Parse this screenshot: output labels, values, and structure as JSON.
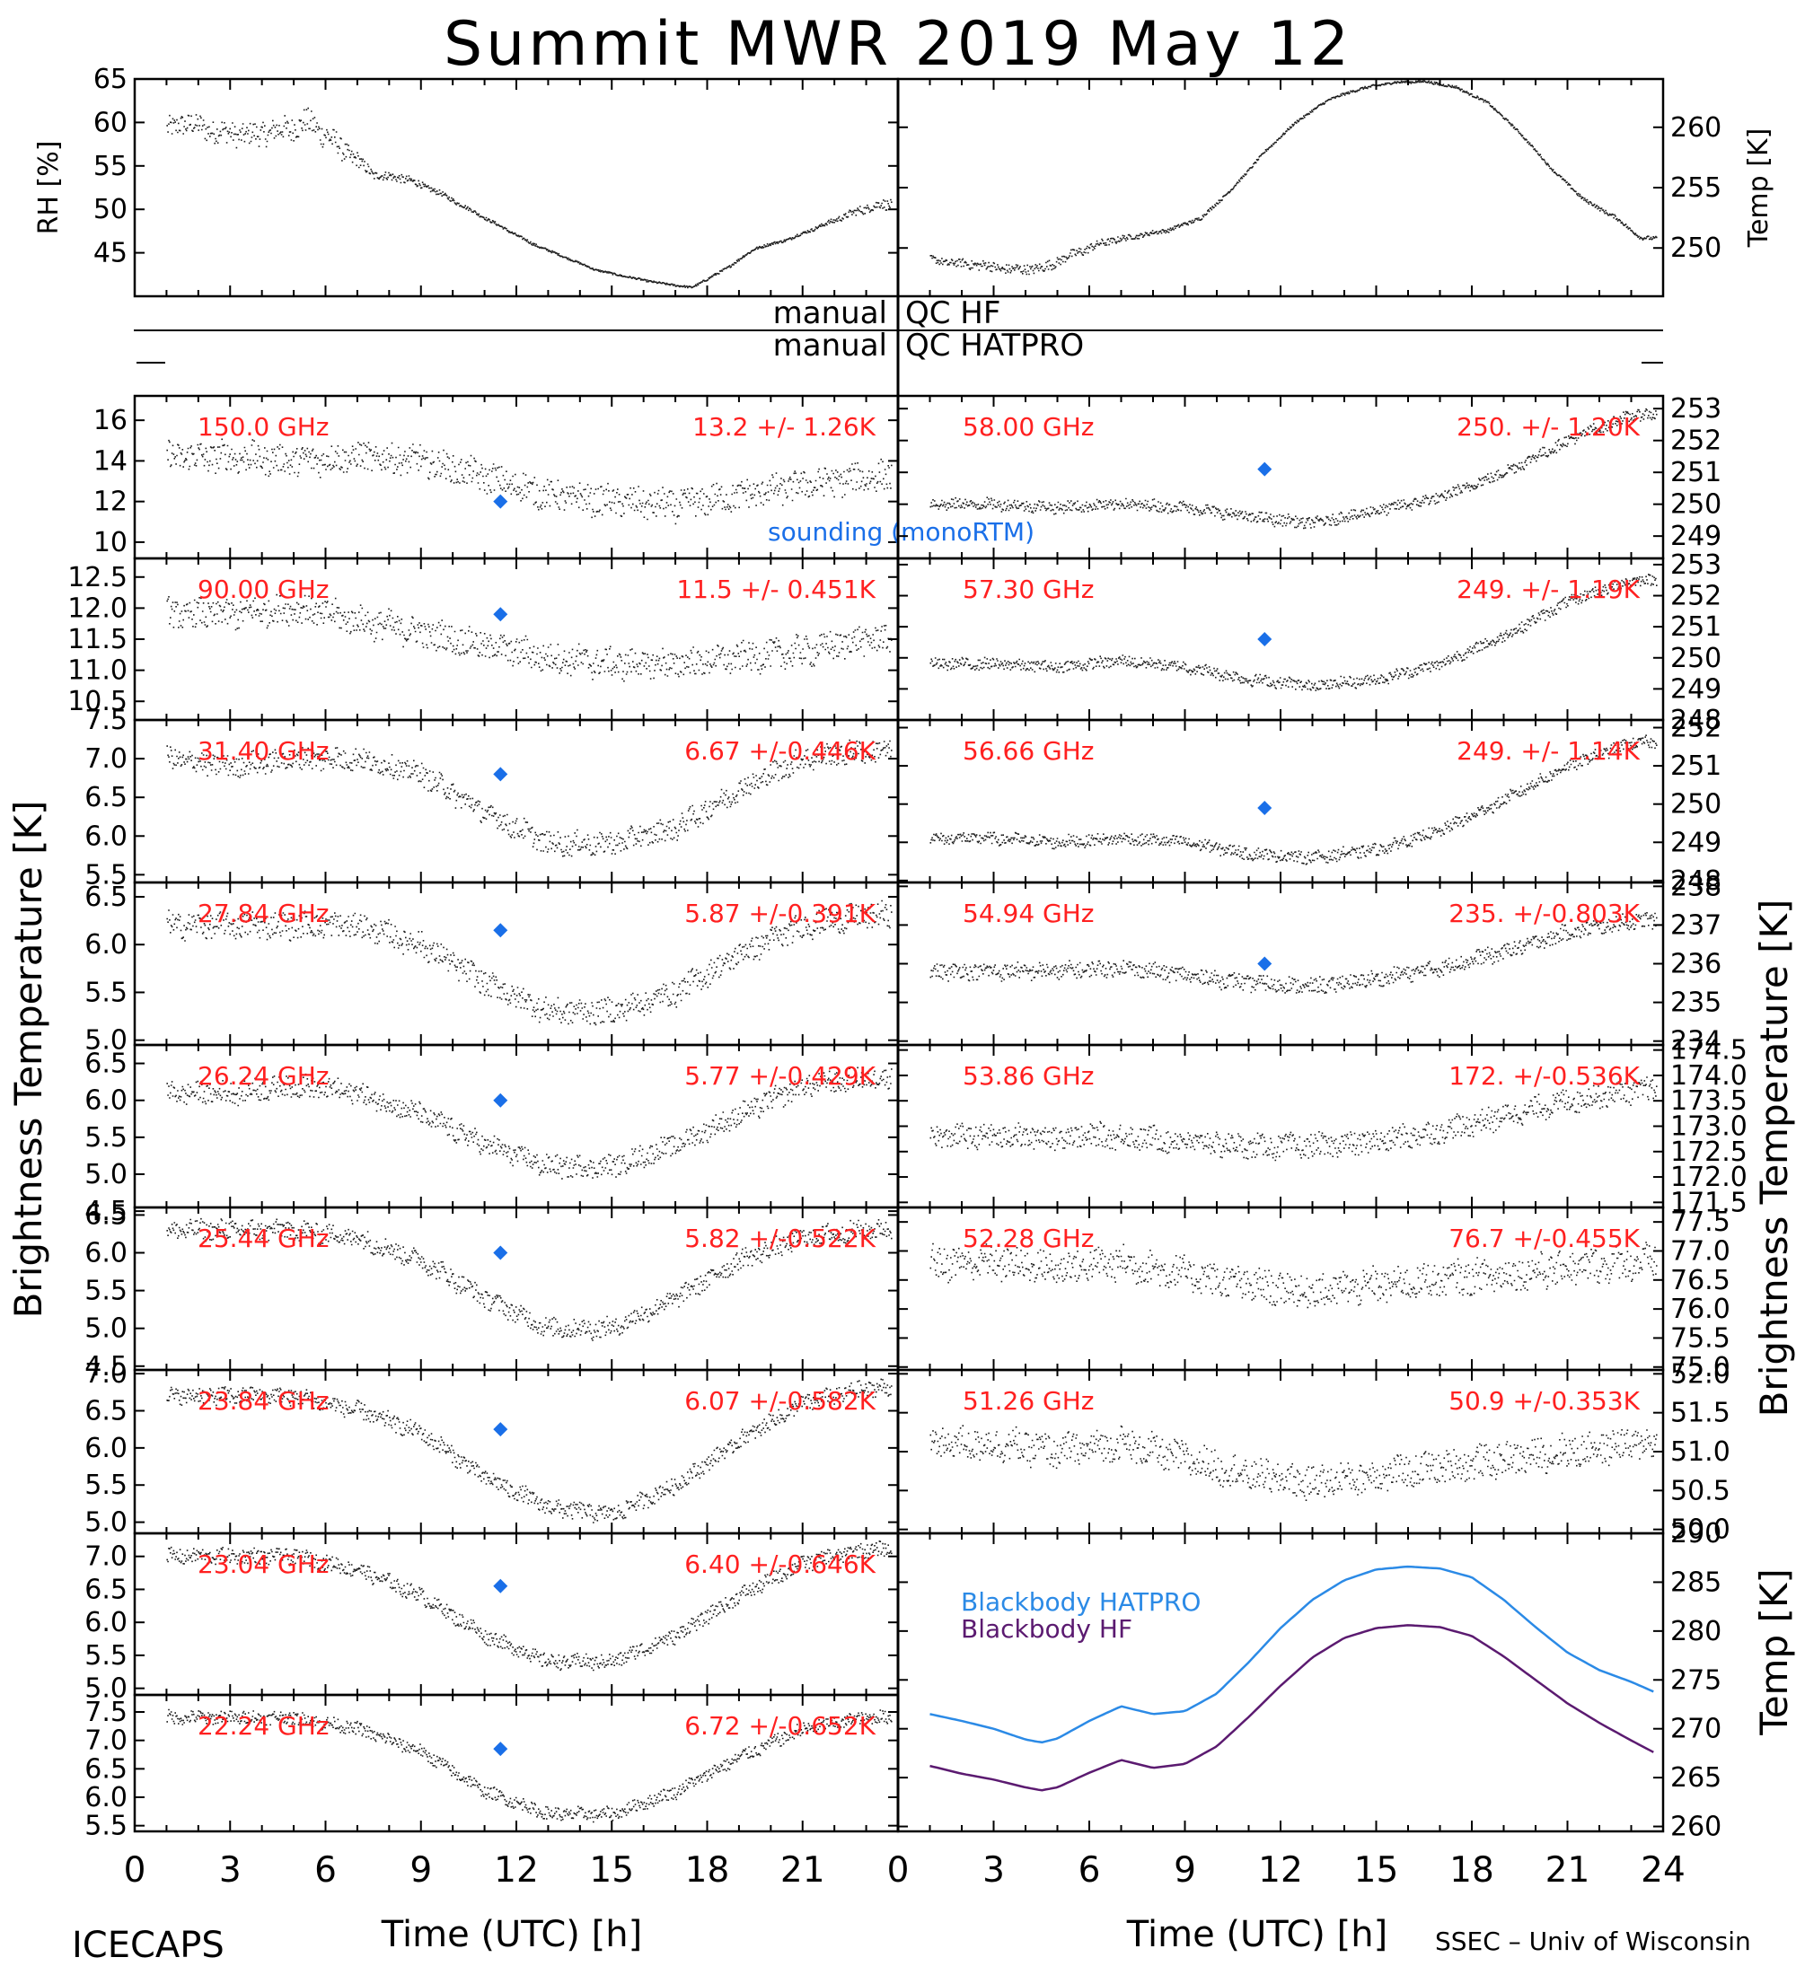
{
  "title": "Summit MWR 2019 May 12",
  "footer_left": "ICECAPS",
  "footer_right": "SSEC – Univ of Wisconsin",
  "colors": {
    "text": "#000000",
    "label_red": "#ff2020",
    "sounding": "#1a6fe8",
    "hatpro": "#2b8ae6",
    "hf": "#5b1a70"
  },
  "left_ylabel": "Brightness Temperature [K]",
  "right_ylabel": "Brightness Temperature [K]",
  "bb_ylabel": "Temp [K]",
  "qc": {
    "hf_left": "manual",
    "hf_right": "QC HF",
    "hatpro_left": "manual",
    "hatpro_right": "QC HATPRO"
  },
  "chart_data": [
    {
      "type": "scatter",
      "id": "rh",
      "ylabel": "RH [%]",
      "xlim": [
        0,
        24
      ],
      "ylim": [
        40,
        65
      ],
      "yticks": [
        "45",
        "50",
        "55",
        "60",
        "65"
      ],
      "x": [
        0.5,
        1.5,
        2.5,
        3.5,
        4.5,
        5.5,
        6.5,
        7.5,
        8.5,
        9.5,
        10.5,
        11.5,
        12.5,
        13.5,
        14.5,
        15.5,
        16.5,
        17.5,
        18.5,
        19.5,
        20.5,
        21.5,
        22.5,
        23.3
      ],
      "values": [
        58,
        60,
        59,
        58.5,
        59,
        60,
        57,
        54,
        53.5,
        52,
        50,
        48,
        46,
        44.5,
        43,
        42.2,
        41.5,
        41,
        43,
        45.5,
        46.5,
        48,
        49.5,
        50.5
      ],
      "noise": [
        2.5,
        2.5,
        2.5,
        2.5,
        2.8,
        3.0,
        2.5,
        1.0,
        1.0,
        0.6,
        0.4,
        0.3,
        0.3,
        0.2,
        0.2,
        0.2,
        0.2,
        0.2,
        0.3,
        0.3,
        0.3,
        0.4,
        0.8,
        1.2
      ]
    },
    {
      "type": "scatter",
      "id": "temp",
      "ylabel": "Temp [K]",
      "xlim": [
        0,
        24
      ],
      "ylim": [
        246,
        264
      ],
      "yticks": [
        "250",
        "255",
        "260"
      ],
      "x": [
        0.5,
        1.5,
        2.5,
        3.5,
        4.5,
        5.5,
        6.5,
        7.5,
        8.5,
        9.5,
        10.5,
        11.5,
        12.5,
        13.5,
        14.5,
        15.5,
        16.5,
        17.5,
        18.5,
        19.5,
        20.5,
        21.5,
        22.5,
        23.3
      ],
      "values": [
        249.3,
        248.8,
        248.6,
        248.2,
        248.3,
        249.5,
        250.5,
        251,
        251.5,
        252.5,
        255,
        258,
        260.5,
        262.3,
        263.2,
        263.7,
        263.8,
        263.3,
        262,
        259.5,
        256.5,
        254,
        252.5,
        250.8
      ],
      "noise": [
        0.5,
        0.6,
        0.8,
        0.8,
        0.8,
        0.8,
        0.6,
        0.4,
        0.3,
        0.3,
        0.2,
        0.2,
        0.2,
        0.2,
        0.2,
        0.2,
        0.2,
        0.2,
        0.2,
        0.2,
        0.2,
        0.3,
        0.3,
        0.3
      ]
    },
    {
      "type": "scatter",
      "channel": "150.0 GHz",
      "stat": "13.2 +/-  1.26K",
      "ylim": [
        9.2,
        17.2
      ],
      "yticks": [
        "10",
        "12",
        "14",
        "16"
      ],
      "x": [
        1,
        3,
        5,
        7,
        9,
        11,
        13,
        15,
        17,
        19,
        21,
        23
      ],
      "values": [
        14.2,
        14.2,
        14.0,
        14.2,
        14.0,
        13.2,
        12.3,
        12.0,
        11.8,
        12.3,
        12.8,
        13.2
      ],
      "noise": 1.4,
      "sounding": {
        "x": 11.5,
        "y": 12.0,
        "label": "sounding (monoRTM)"
      }
    },
    {
      "type": "scatter",
      "channel": "90.00 GHz",
      "stat": "11.5 +/- 0.451K",
      "ylim": [
        10.2,
        12.8
      ],
      "yticks": [
        "10.5",
        "11.0",
        "11.5",
        "12.0",
        "12.5"
      ],
      "x": [
        1,
        3,
        5,
        7,
        9,
        11,
        13,
        15,
        17,
        19,
        21,
        23
      ],
      "values": [
        11.9,
        11.9,
        12.0,
        11.8,
        11.6,
        11.4,
        11.2,
        11.1,
        11.1,
        11.2,
        11.3,
        11.5
      ],
      "noise": 0.45,
      "sounding": {
        "x": 11.5,
        "y": 11.9
      }
    },
    {
      "type": "scatter",
      "channel": "31.40 GHz",
      "stat": "6.67 +/-0.446K",
      "ylim": [
        5.4,
        7.5
      ],
      "yticks": [
        "5.5",
        "6.0",
        "6.5",
        "7.0",
        "7.5"
      ],
      "x": [
        1,
        3,
        5,
        7,
        9,
        11,
        13,
        15,
        17,
        19,
        21,
        23
      ],
      "values": [
        7.0,
        6.9,
        7.0,
        7.0,
        6.8,
        6.3,
        5.9,
        5.9,
        6.1,
        6.6,
        7.0,
        7.1
      ],
      "noise": 0.28,
      "sounding": {
        "x": 11.5,
        "y": 6.8
      }
    },
    {
      "type": "scatter",
      "channel": "27.84 GHz",
      "stat": "5.87 +/-0.391K",
      "ylim": [
        4.95,
        6.65
      ],
      "yticks": [
        "5.0",
        "5.5",
        "6.0",
        "6.5"
      ],
      "x": [
        1,
        3,
        5,
        7,
        9,
        11,
        13,
        15,
        17,
        19,
        21,
        23
      ],
      "values": [
        6.2,
        6.2,
        6.2,
        6.2,
        6.0,
        5.6,
        5.3,
        5.3,
        5.5,
        5.9,
        6.2,
        6.3
      ],
      "noise": 0.25,
      "sounding": {
        "x": 11.5,
        "y": 6.15
      }
    },
    {
      "type": "scatter",
      "channel": "26.24 GHz",
      "stat": "5.77 +/-0.429K",
      "ylim": [
        4.55,
        6.75
      ],
      "yticks": [
        "4.5",
        "5.0",
        "5.5",
        "6.0",
        "6.5"
      ],
      "x": [
        1,
        3,
        5,
        7,
        9,
        11,
        13,
        15,
        17,
        19,
        21,
        23
      ],
      "values": [
        6.1,
        6.1,
        6.2,
        6.1,
        5.8,
        5.4,
        5.1,
        5.1,
        5.4,
        5.8,
        6.2,
        6.3
      ],
      "noise": 0.28,
      "sounding": {
        "x": 11.5,
        "y": 6.0
      }
    },
    {
      "type": "scatter",
      "channel": "25.44 GHz",
      "stat": "5.82 +/-0.522K",
      "ylim": [
        4.45,
        6.6
      ],
      "yticks": [
        "4.5",
        "5.0",
        "5.5",
        "6.0",
        "6.5"
      ],
      "x": [
        1,
        3,
        5,
        7,
        9,
        11,
        13,
        15,
        17,
        19,
        21,
        23
      ],
      "values": [
        6.3,
        6.3,
        6.3,
        6.2,
        5.9,
        5.4,
        5.0,
        5.0,
        5.4,
        5.9,
        6.2,
        6.3
      ],
      "noise": 0.25,
      "sounding": {
        "x": 11.5,
        "y": 6.0
      }
    },
    {
      "type": "scatter",
      "channel": "23.84 GHz",
      "stat": "6.07 +/-0.582K",
      "ylim": [
        4.85,
        7.05
      ],
      "yticks": [
        "5.0",
        "5.5",
        "6.0",
        "6.5",
        "7.0"
      ],
      "x": [
        1,
        3,
        5,
        7,
        9,
        11,
        13,
        15,
        17,
        19,
        21,
        23
      ],
      "values": [
        6.7,
        6.7,
        6.7,
        6.5,
        6.2,
        5.6,
        5.2,
        5.1,
        5.5,
        6.1,
        6.6,
        6.8
      ],
      "noise": 0.22,
      "sounding": {
        "x": 11.5,
        "y": 6.25
      }
    },
    {
      "type": "scatter",
      "channel": "23.04 GHz",
      "stat": "6.40 +/-0.646K",
      "ylim": [
        4.9,
        7.35
      ],
      "yticks": [
        "5.0",
        "5.5",
        "6.0",
        "6.5",
        "7.0"
      ],
      "x": [
        1,
        3,
        5,
        7,
        9,
        11,
        13,
        15,
        17,
        19,
        21,
        23
      ],
      "values": [
        7.0,
        7.0,
        7.0,
        6.8,
        6.4,
        5.8,
        5.4,
        5.4,
        5.8,
        6.4,
        6.9,
        7.1
      ],
      "noise": 0.22,
      "sounding": {
        "x": 11.5,
        "y": 6.55
      }
    },
    {
      "type": "scatter",
      "channel": "22.24 GHz",
      "stat": "6.72 +/-0.652K",
      "ylim": [
        5.4,
        7.8
      ],
      "yticks": [
        "5.5",
        "6.0",
        "6.5",
        "7.0",
        "7.5"
      ],
      "x": [
        1,
        3,
        5,
        7,
        9,
        11,
        13,
        15,
        17,
        19,
        21,
        23
      ],
      "values": [
        7.4,
        7.4,
        7.4,
        7.2,
        6.8,
        6.1,
        5.7,
        5.7,
        6.1,
        6.7,
        7.2,
        7.4
      ],
      "noise": 0.22,
      "sounding": {
        "x": 11.5,
        "y": 6.85
      }
    },
    {
      "type": "scatter",
      "channel": "58.00 GHz",
      "stat": "250. +/-  1.20K",
      "ylim": [
        248.3,
        253.4
      ],
      "yticks": [
        "249",
        "250",
        "251",
        "252",
        "253"
      ],
      "x": [
        1,
        3,
        5,
        7,
        9,
        11,
        13,
        15,
        17,
        19,
        21,
        23
      ],
      "values": [
        250.0,
        250.0,
        249.9,
        250.0,
        249.9,
        249.6,
        249.4,
        249.8,
        250.2,
        251.0,
        252.0,
        252.8
      ],
      "noise": 0.35,
      "sounding": {
        "x": 11.5,
        "y": 251.1
      }
    },
    {
      "type": "scatter",
      "channel": "57.30 GHz",
      "stat": "249. +/-  1.19K",
      "ylim": [
        248.0,
        253.2
      ],
      "yticks": [
        "248",
        "249",
        "250",
        "251",
        "252",
        "253"
      ],
      "x": [
        1,
        3,
        5,
        7,
        9,
        11,
        13,
        15,
        17,
        19,
        21,
        23
      ],
      "values": [
        249.8,
        249.8,
        249.7,
        249.9,
        249.7,
        249.3,
        249.1,
        249.3,
        249.8,
        250.7,
        251.8,
        252.5
      ],
      "noise": 0.35,
      "sounding": {
        "x": 11.5,
        "y": 250.6
      }
    },
    {
      "type": "scatter",
      "channel": "56.66 GHz",
      "stat": "249. +/-  1.14K",
      "ylim": [
        247.95,
        252.2
      ],
      "yticks": [
        "248",
        "249",
        "250",
        "251",
        "252"
      ],
      "x": [
        1,
        3,
        5,
        7,
        9,
        11,
        13,
        15,
        17,
        19,
        21,
        23
      ],
      "values": [
        249.1,
        249.1,
        249.0,
        249.1,
        249.0,
        248.7,
        248.6,
        248.8,
        249.3,
        250.1,
        251.0,
        251.6
      ],
      "noise": 0.3,
      "sounding": {
        "x": 11.5,
        "y": 249.9
      }
    },
    {
      "type": "scatter",
      "channel": "54.94 GHz",
      "stat": "235. +/-0.803K",
      "ylim": [
        233.9,
        238.1
      ],
      "yticks": [
        "234",
        "235",
        "236",
        "237",
        "238"
      ],
      "x": [
        1,
        3,
        5,
        7,
        9,
        11,
        13,
        15,
        17,
        19,
        21,
        23
      ],
      "values": [
        235.8,
        235.8,
        235.8,
        235.9,
        235.7,
        235.5,
        235.4,
        235.6,
        235.9,
        236.3,
        236.8,
        237.1
      ],
      "noise": 0.4,
      "sounding": {
        "x": 11.5,
        "y": 236.0
      }
    },
    {
      "type": "scatter",
      "channel": "53.86 GHz",
      "stat": "172. +/-0.536K",
      "ylim": [
        171.4,
        174.6
      ],
      "yticks": [
        "171.5",
        "172.0",
        "172.5",
        "173.0",
        "173.5",
        "174.0",
        "174.5"
      ],
      "x": [
        1,
        3,
        5,
        7,
        9,
        11,
        13,
        15,
        17,
        19,
        21,
        23
      ],
      "values": [
        172.8,
        172.8,
        172.8,
        172.8,
        172.7,
        172.6,
        172.6,
        172.7,
        172.9,
        173.2,
        173.5,
        173.7
      ],
      "noise": 0.45
    },
    {
      "type": "scatter",
      "channel": "52.28 GHz",
      "stat": "76.7 +/-0.455K",
      "ylim": [
        74.95,
        77.75
      ],
      "yticks": [
        "75.0",
        "75.5",
        "76.0",
        "76.5",
        "77.0",
        "77.5"
      ],
      "x": [
        1,
        3,
        5,
        7,
        9,
        11,
        13,
        15,
        17,
        19,
        21,
        23
      ],
      "values": [
        76.8,
        76.8,
        76.7,
        76.8,
        76.6,
        76.4,
        76.3,
        76.4,
        76.5,
        76.6,
        76.7,
        76.8
      ],
      "noise": 0.55
    },
    {
      "type": "scatter",
      "channel": "51.26 GHz",
      "stat": "50.9 +/-0.353K",
      "ylim": [
        49.95,
        52.05
      ],
      "yticks": [
        "50.0",
        "50.5",
        "51.0",
        "51.5",
        "52.0"
      ],
      "x": [
        1,
        3,
        5,
        7,
        9,
        11,
        13,
        15,
        17,
        19,
        21,
        23
      ],
      "values": [
        51.1,
        51.1,
        51.0,
        51.1,
        50.9,
        50.7,
        50.6,
        50.7,
        50.8,
        50.9,
        51.0,
        51.1
      ],
      "noise": 0.4
    },
    {
      "type": "line",
      "id": "blackbody",
      "ylabel": "Temp [K]",
      "xlim": [
        0,
        24
      ],
      "ylim": [
        259.5,
        290
      ],
      "yticks": [
        "260",
        "265",
        "270",
        "275",
        "280",
        "285",
        "290"
      ],
      "x": [
        1,
        2,
        3,
        4,
        4.5,
        5,
        6,
        7,
        8,
        9,
        10,
        11,
        12,
        13,
        14,
        15,
        16,
        17,
        18,
        19,
        20,
        21,
        22,
        23,
        23.7
      ],
      "series": [
        {
          "name": "Blackbody HATPRO",
          "color": "#2b8ae6",
          "values": [
            271.5,
            270.8,
            270.0,
            268.9,
            268.6,
            269.0,
            270.8,
            272.3,
            271.5,
            271.8,
            273.6,
            276.8,
            280.3,
            283.2,
            285.2,
            286.3,
            286.6,
            286.4,
            285.5,
            283.2,
            280.4,
            277.8,
            276.0,
            274.8,
            273.8
          ]
        },
        {
          "name": "Blackbody HF",
          "color": "#5b1a70",
          "values": [
            266.2,
            265.4,
            264.8,
            264.0,
            263.7,
            264.0,
            265.5,
            266.8,
            266.0,
            266.4,
            268.2,
            271.2,
            274.4,
            277.3,
            279.3,
            280.3,
            280.6,
            280.4,
            279.5,
            277.4,
            275.0,
            272.6,
            270.6,
            268.8,
            267.6
          ]
        }
      ]
    }
  ],
  "x_axis": {
    "label": "Time (UTC) [h]",
    "left_ticks": [
      "0",
      "3",
      "6",
      "9",
      "12",
      "15",
      "18",
      "21"
    ],
    "right_ticks": [
      "0",
      "3",
      "6",
      "9",
      "12",
      "15",
      "18",
      "21",
      "24"
    ]
  }
}
